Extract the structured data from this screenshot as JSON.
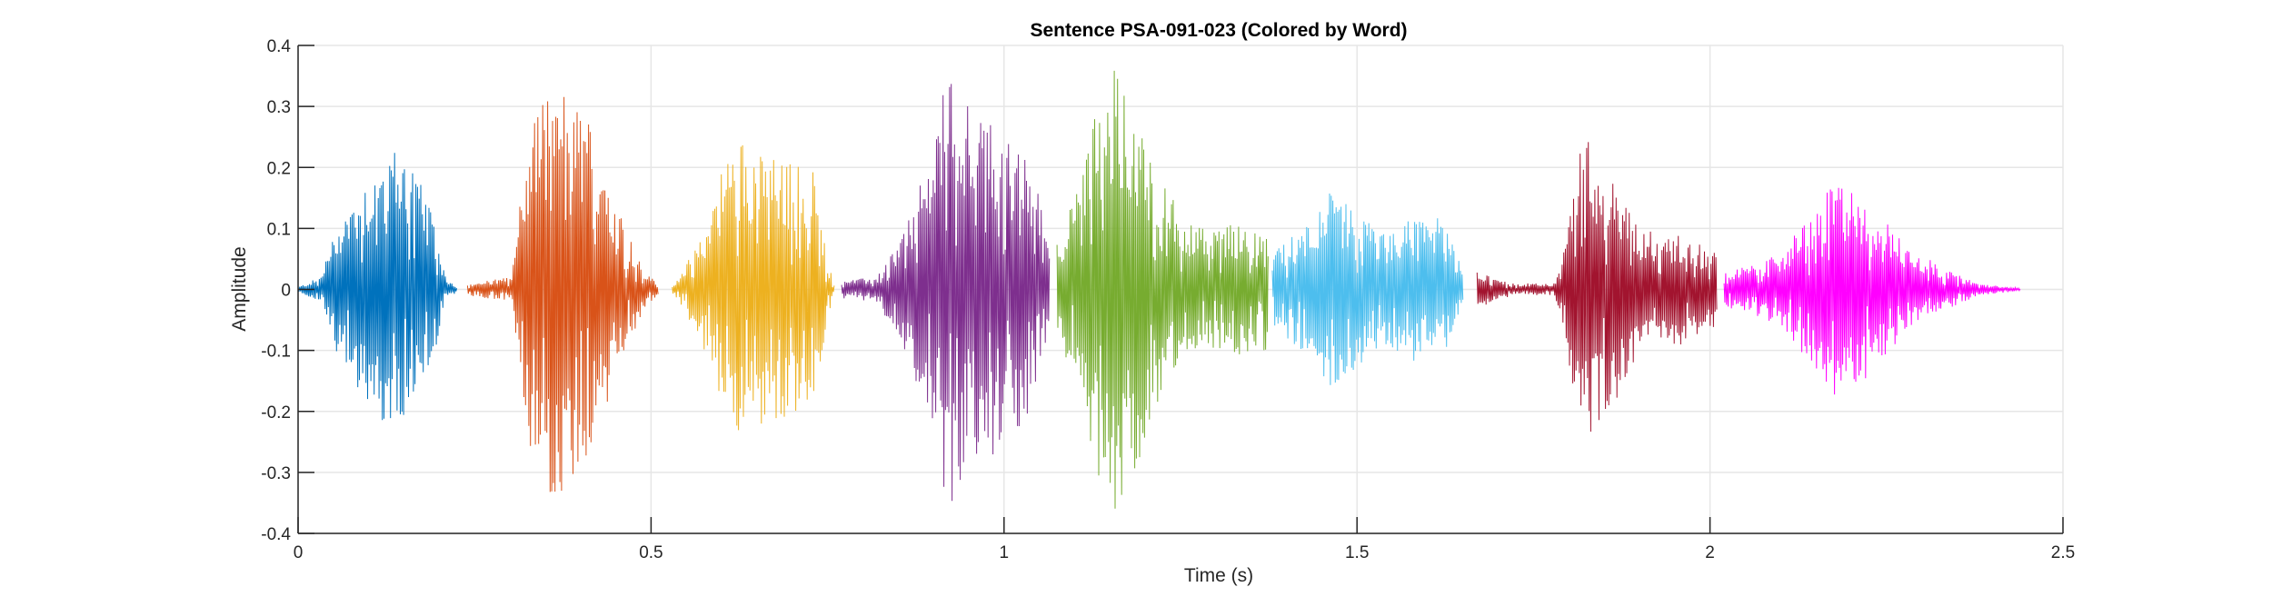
{
  "chart_data": {
    "type": "line",
    "title": "Sentence PSA-091-023 (Colored by Word)",
    "xlabel": "Time (s)",
    "ylabel": "Amplitude",
    "xlim": [
      0,
      2.5
    ],
    "ylim": [
      -0.4,
      0.4
    ],
    "xticks": [
      0,
      0.5,
      1,
      1.5,
      2,
      2.5
    ],
    "xtick_labels": [
      "0",
      "0.5",
      "1",
      "1.5",
      "2",
      "2.5"
    ],
    "yticks": [
      -0.4,
      -0.3,
      -0.2,
      -0.1,
      0,
      0.1,
      0.2,
      0.3,
      0.4
    ],
    "ytick_labels": [
      "-0.4",
      "-0.3",
      "-0.2",
      "-0.1",
      "0",
      "0.1",
      "0.2",
      "0.3",
      "0.4"
    ],
    "grid": true,
    "series": [
      {
        "color": "#0072BD",
        "start": 0.0,
        "end": 0.225,
        "envelope_x": [
          0.0,
          0.03,
          0.06,
          0.1,
          0.13,
          0.16,
          0.19,
          0.21,
          0.225
        ],
        "envelope_y": [
          0.004,
          0.02,
          0.12,
          0.19,
          0.24,
          0.22,
          0.12,
          0.02,
          0.004
        ]
      },
      {
        "color": "#D95319",
        "start": 0.24,
        "end": 0.51,
        "envelope_x": [
          0.24,
          0.3,
          0.33,
          0.36,
          0.38,
          0.42,
          0.46,
          0.49,
          0.51
        ],
        "envelope_y": [
          0.01,
          0.02,
          0.28,
          0.34,
          0.33,
          0.26,
          0.12,
          0.03,
          0.01
        ]
      },
      {
        "color": "#EDB120",
        "start": 0.53,
        "end": 0.76,
        "envelope_x": [
          0.53,
          0.57,
          0.6,
          0.63,
          0.66,
          0.7,
          0.73,
          0.75,
          0.76
        ],
        "envelope_y": [
          0.005,
          0.08,
          0.2,
          0.25,
          0.22,
          0.21,
          0.2,
          0.05,
          0.005
        ]
      },
      {
        "color": "#7E2F8E",
        "start": 0.77,
        "end": 1.065,
        "envelope_x": [
          0.77,
          0.82,
          0.86,
          0.89,
          0.92,
          0.96,
          1.0,
          1.04,
          1.065
        ],
        "envelope_y": [
          0.015,
          0.02,
          0.1,
          0.2,
          0.36,
          0.3,
          0.26,
          0.2,
          0.08
        ]
      },
      {
        "color": "#77AC30",
        "start": 1.075,
        "end": 1.375,
        "envelope_x": [
          1.075,
          1.1,
          1.13,
          1.16,
          1.19,
          1.23,
          1.28,
          1.33,
          1.375
        ],
        "envelope_y": [
          0.08,
          0.15,
          0.3,
          0.37,
          0.3,
          0.16,
          0.1,
          0.11,
          0.1
        ]
      },
      {
        "color": "#4DBEEE",
        "start": 1.38,
        "end": 1.65,
        "envelope_x": [
          1.38,
          1.42,
          1.46,
          1.5,
          1.54,
          1.58,
          1.61,
          1.63,
          1.65
        ],
        "envelope_y": [
          0.06,
          0.1,
          0.16,
          0.13,
          0.09,
          0.12,
          0.13,
          0.09,
          0.03
        ]
      },
      {
        "color": "#A2142F",
        "start": 1.67,
        "end": 2.01,
        "envelope_x": [
          1.67,
          1.72,
          1.78,
          1.8,
          1.82,
          1.86,
          1.9,
          1.96,
          2.01
        ],
        "envelope_y": [
          0.03,
          0.01,
          0.01,
          0.12,
          0.26,
          0.2,
          0.1,
          0.09,
          0.06
        ]
      },
      {
        "color": "#FF00FF",
        "start": 2.02,
        "end": 2.44,
        "envelope_x": [
          2.02,
          2.06,
          2.1,
          2.14,
          2.18,
          2.22,
          2.28,
          2.34,
          2.38,
          2.44
        ],
        "envelope_y": [
          0.03,
          0.04,
          0.06,
          0.12,
          0.18,
          0.15,
          0.07,
          0.03,
          0.01,
          0.002
        ]
      }
    ]
  }
}
